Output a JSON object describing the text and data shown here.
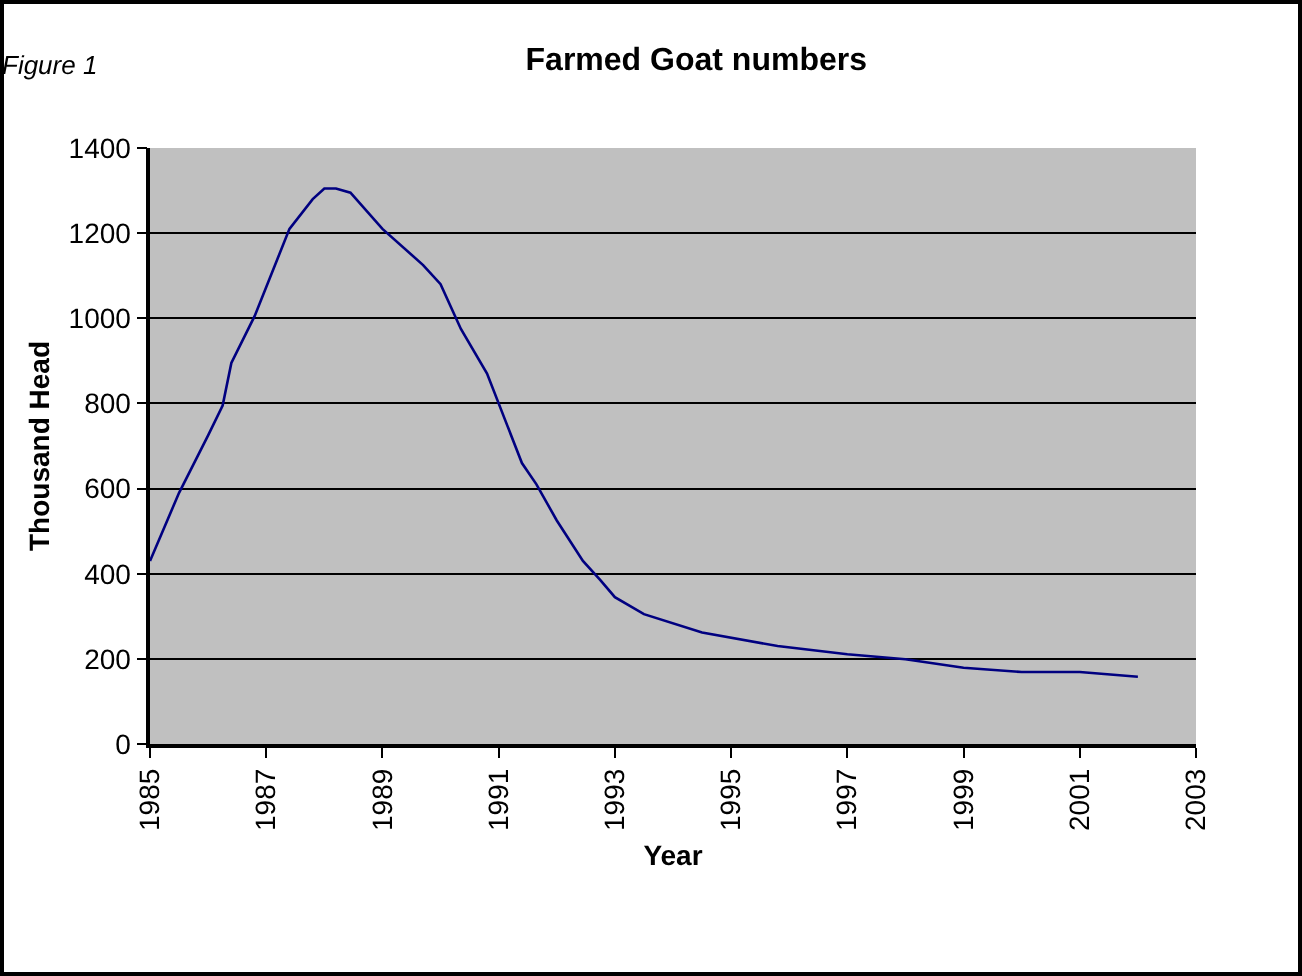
{
  "chart_data": {
    "type": "line",
    "title": "Farmed Goat numbers",
    "xlabel": "Year",
    "ylabel": "Thousand Head",
    "annotations": [
      "Figure 1"
    ],
    "x": [
      1985,
      1985.5,
      1986,
      1986.25,
      1986.4,
      1986.8,
      1987.4,
      1987.8,
      1988,
      1988.2,
      1988.45,
      1989,
      1989.7,
      1990,
      1990.35,
      1990.8,
      1991.4,
      1991.65,
      1992,
      1992.45,
      1992.75,
      1993,
      1993.5,
      1994.5,
      1995.8,
      1997,
      1998,
      1999,
      2000,
      2001,
      2002
    ],
    "series": [
      {
        "color": "#000080",
        "values": [
          430,
          590,
          725,
          795,
          895,
          1005,
          1210,
          1280,
          1305,
          1305,
          1295,
          1210,
          1125,
          1080,
          975,
          870,
          660,
          610,
          525,
          430,
          385,
          345,
          305,
          262,
          230,
          211,
          199,
          179,
          169,
          169,
          158
        ]
      }
    ],
    "xlim": [
      1985,
      2003
    ],
    "xticks": [
      1985,
      1987,
      1989,
      1991,
      1993,
      1995,
      1997,
      1999,
      2001,
      2003
    ],
    "ylim": [
      0,
      1400
    ],
    "yticks": [
      0,
      200,
      400,
      600,
      800,
      1000,
      1200,
      1400
    ],
    "grid": "y",
    "marker": "none",
    "line_style": "solid"
  }
}
